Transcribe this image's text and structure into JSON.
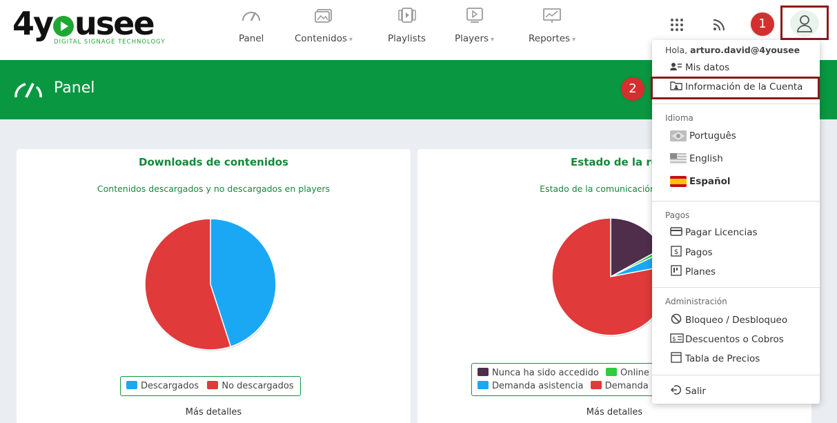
{
  "logo": {
    "text_a": "4y",
    "text_b": "usee",
    "tagline": "DIGITAL SIGNAGE TECHNOLOGY"
  },
  "nav": [
    {
      "label": "Panel",
      "caret": ""
    },
    {
      "label": "Contenidos",
      "caret": "▾"
    },
    {
      "label": "Playlists",
      "caret": ""
    },
    {
      "label": "Players",
      "caret": "▾"
    },
    {
      "label": "Reportes",
      "caret": "▾"
    }
  ],
  "badges": {
    "one": "1",
    "two": "2"
  },
  "banner": {
    "title": "Panel"
  },
  "cards": [
    {
      "title": "Downloads de contenidos",
      "subtitle": "Contenidos descargados y no descargados en players",
      "more": "Más detalles"
    },
    {
      "title": "Estado de la re",
      "subtitle": "Estado de la comunicación entre p",
      "more": "Más detalles"
    }
  ],
  "chart_data": [
    {
      "type": "pie",
      "title": "Downloads de contenidos",
      "subtitle": "Contenidos descargados y no descargados en players",
      "series": [
        {
          "name": "Descargados",
          "value": 45,
          "color": "#1aa8f5"
        },
        {
          "name": "No descargados",
          "value": 55,
          "color": "#e03a3a"
        }
      ],
      "legend_position": "bottom"
    },
    {
      "type": "pie",
      "title": "Estado de la re",
      "subtitle": "Estado de la comunicación entre p",
      "series": [
        {
          "name": "Nunca ha sido accedido",
          "value": 17,
          "color": "#4e2e4b"
        },
        {
          "name": "Online",
          "value": 1,
          "color": "#2ecc40"
        },
        {
          "name": "Demanda asistencia",
          "value": 4,
          "color": "#1aa8f5"
        },
        {
          "name": "Demanda",
          "value": 78,
          "color": "#e03a3a"
        }
      ],
      "legend_position": "bottom"
    }
  ],
  "dropdown": {
    "greeting_prefix": "Hola, ",
    "user": "arturo.david@4yousee",
    "mis_datos": "Mis datos",
    "info_cuenta": "Información de la Cuenta",
    "idioma_label": "Idioma",
    "lang_pt": "Português",
    "lang_en": "English",
    "lang_es": "Español",
    "pagos_label": "Pagos",
    "pagar_licencias": "Pagar Licencias",
    "pagos": "Pagos",
    "planes": "Planes",
    "admin_label": "Administración",
    "bloqueo": "Bloqueo / Desbloqueo",
    "descuentos": "Descuentos o Cobros",
    "tabla_precios": "Tabla de Precios",
    "salir": "Salir"
  },
  "colors": {
    "brand_green": "#0a9741",
    "highlight": "#8b1a1a",
    "badge_red": "#d32f2f"
  }
}
